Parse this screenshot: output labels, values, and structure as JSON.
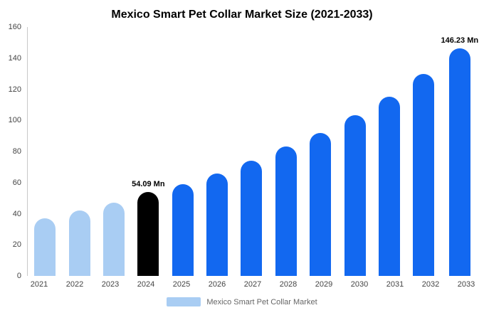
{
  "chart_data": {
    "type": "bar",
    "title": "Mexico Smart Pet Collar Market Size (2021-2033)",
    "categories": [
      "2021",
      "2022",
      "2023",
      "2024",
      "2025",
      "2026",
      "2027",
      "2028",
      "2029",
      "2030",
      "2031",
      "2032",
      "2033"
    ],
    "values": [
      37,
      42,
      47,
      54.09,
      59,
      66,
      74,
      83,
      92,
      103.5,
      115,
      130,
      146.23
    ],
    "bar_roles": [
      "historical",
      "historical",
      "historical",
      "current",
      "forecast",
      "forecast",
      "forecast",
      "forecast",
      "forecast",
      "forecast",
      "forecast",
      "forecast",
      "forecast"
    ],
    "colors": {
      "historical": "#a9cdf3",
      "current": "#000000",
      "forecast": "#1268f0"
    },
    "annotations": [
      {
        "category": "2024",
        "text": "54.09 Mn"
      },
      {
        "category": "2033",
        "text": "146.23 Mn"
      }
    ],
    "ylim": [
      0,
      160
    ],
    "yticks": [
      0,
      20,
      40,
      60,
      80,
      100,
      120,
      140,
      160
    ],
    "grid": false,
    "legend": {
      "label": "Mexico Smart Pet Collar Market",
      "swatch_color": "#a9cdf3",
      "position": "bottom"
    }
  }
}
